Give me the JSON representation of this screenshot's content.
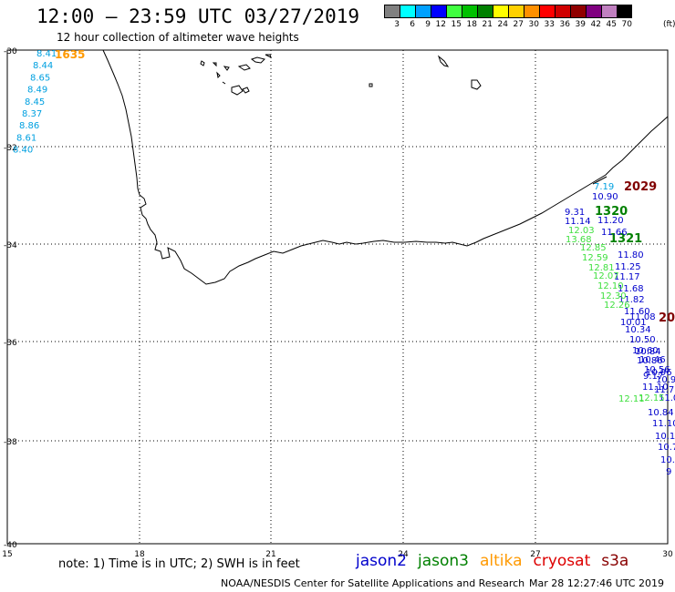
{
  "header": {
    "title": "12:00 – 23:59 UTC 03/27/2019",
    "subtitle": "12 hour collection of altimeter wave heights"
  },
  "scale": {
    "unit": "(ft)",
    "bins": [
      {
        "label": "3",
        "color": "#808080"
      },
      {
        "label": "6",
        "color": "#00ffff"
      },
      {
        "label": "9",
        "color": "#00a0ff"
      },
      {
        "label": "12",
        "color": "#0000ff"
      },
      {
        "label": "15",
        "color": "#40ff40"
      },
      {
        "label": "18",
        "color": "#00c000"
      },
      {
        "label": "21",
        "color": "#008000"
      },
      {
        "label": "24",
        "color": "#ffff00"
      },
      {
        "label": "27",
        "color": "#ffd000"
      },
      {
        "label": "30",
        "color": "#ff9000"
      },
      {
        "label": "33",
        "color": "#ff0000"
      },
      {
        "label": "36",
        "color": "#d00000"
      },
      {
        "label": "39",
        "color": "#900000"
      },
      {
        "label": "42",
        "color": "#800080"
      },
      {
        "label": "45",
        "color": "#c080c0"
      },
      {
        "label": "70",
        "color": "#000000"
      }
    ]
  },
  "axes": {
    "lat_labels": [
      "-30",
      "-32",
      "-34",
      "-36",
      "-38",
      "-40"
    ],
    "lon_labels": [
      "15",
      "18",
      "21",
      "24",
      "27",
      "30"
    ]
  },
  "obs": {
    "west_time": "1635",
    "west_values": [
      "8.41",
      "8.44",
      "8.65",
      "8.49",
      "8.45",
      "8.37",
      "8.86",
      "8.61",
      "8.40"
    ],
    "east_times": [
      {
        "text": "2029",
        "color": "#800000"
      },
      {
        "text": "1320",
        "color": "#008000"
      },
      {
        "text": "1321",
        "color": "#008000"
      },
      {
        "text": "20",
        "color": "#800000"
      }
    ],
    "cyan_values": [
      "7.19"
    ],
    "blue_values": [
      "10.90",
      "9.31",
      "11.14",
      "11.20",
      "11.66",
      "11.80",
      "11.25",
      "11.17",
      "11.68",
      "11.82",
      "11.60",
      "11.08",
      "10.01",
      "10.34",
      "10.50",
      "10.60",
      "10.84",
      "10.46",
      "10.86",
      "10.56",
      "10.96",
      "9.17",
      "10.99",
      "11.10",
      "11.76",
      "11.09",
      "10.84",
      "11.10",
      "10.11",
      "10.7",
      "10.",
      "9"
    ],
    "green_values": [
      "12.03",
      "13.68",
      "12.85",
      "12.59",
      "12.81",
      "12.07",
      "12.10",
      "12.30",
      "12.26",
      "12.11",
      "12.15"
    ]
  },
  "footer": {
    "note": "note: 1) Time is in UTC; 2) SWH is in feet",
    "satellites": [
      {
        "name": "jason2",
        "color": "#0000cc"
      },
      {
        "name": "jason3",
        "color": "#008000"
      },
      {
        "name": "altika",
        "color": "#ff9900"
      },
      {
        "name": "cryosat",
        "color": "#dd0000"
      },
      {
        "name": "s3a",
        "color": "#880000"
      }
    ],
    "credit": "NOAA/NESDIS Center for Satellite Applications and Research",
    "timestamp": "Mar 28 12:27:46 UTC 2019"
  }
}
